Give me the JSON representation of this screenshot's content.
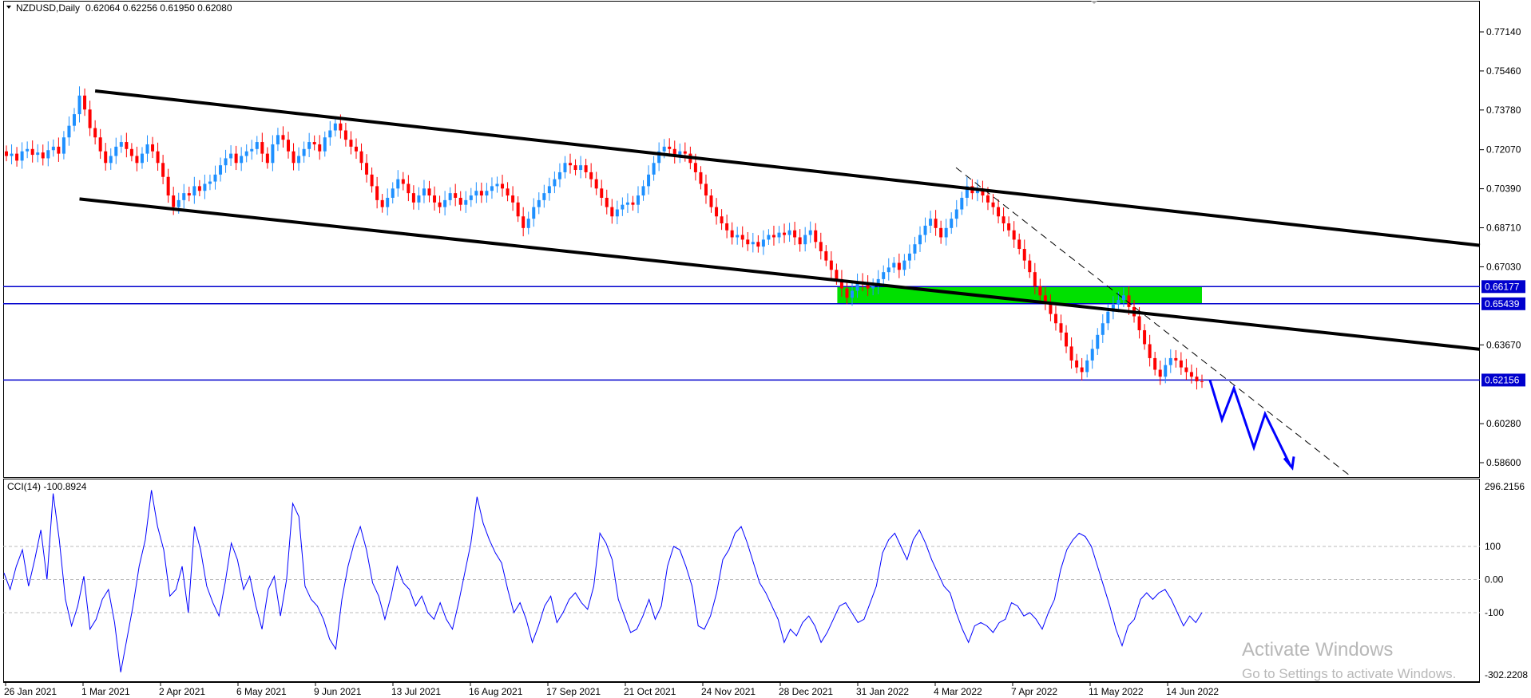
{
  "header": {
    "symbol": "NZDUSD,Daily",
    "ohlc": "0.62064 0.62256 0.61950 0.62080"
  },
  "indicator": {
    "label": "CCI(14) -100.8924"
  },
  "watermark": {
    "line1": "Activate Windows",
    "line2": "Go to Settings to activate Windows."
  },
  "colors": {
    "bull": "#1e90ff",
    "bear": "#ff0000",
    "hline": "#0000cd",
    "zone": "#00e000",
    "cci": "#0000ff",
    "projection": "#0000ff"
  },
  "chart_data": [
    {
      "type": "candlestick",
      "title": "NZDUSD,Daily",
      "x_tick_labels": [
        "26 Jan 2021",
        "1 Mar 2021",
        "2 Apr 2021",
        "6 May 2021",
        "9 Jun 2021",
        "13 Jul 2021",
        "16 Aug 2021",
        "17 Sep 2021",
        "21 Oct 2021",
        "24 Nov 2021",
        "28 Dec 2021",
        "31 Jan 2022",
        "4 Mar 2022",
        "7 Apr 2022",
        "11 May 2022",
        "14 Jun 2022"
      ],
      "y_tick_labels": [
        "0.77140",
        "0.75460",
        "0.73780",
        "0.72070",
        "0.70390",
        "0.68710",
        "0.67030",
        "0.63670",
        "0.60280",
        "0.58600"
      ],
      "ylim": [
        0.58,
        0.784
      ],
      "horizontal_levels": [
        {
          "label": "0.66177",
          "value": 0.66177
        },
        {
          "label": "0.65439",
          "value": 0.65439
        },
        {
          "label": "0.62156",
          "value": 0.62156
        }
      ],
      "zone": {
        "from": "3 Jan 2022",
        "to": "28 Jun 2022",
        "low": 0.6544,
        "high": 0.6618
      },
      "channel": {
        "upper": [
          {
            "date": "23 Feb 2021",
            "value": 0.746
          },
          {
            "date": "end",
            "value": 0.6795
          }
        ],
        "lower": [
          {
            "date": "17 Feb 2021",
            "value": 0.6995
          },
          {
            "date": "end",
            "value": 0.6348
          }
        ]
      },
      "downtrend_dashed": [
        {
          "date": "7 Mar 2022",
          "value": 0.713
        },
        {
          "date": "projection-end",
          "value": 0.5805
        }
      ],
      "projection_path": [
        0.6215,
        0.6045,
        0.618,
        0.5925,
        0.607,
        0.5845
      ],
      "closes": [
        0.718,
        0.719,
        0.716,
        0.72,
        0.721,
        0.7185,
        0.7195,
        0.717,
        0.7205,
        0.722,
        0.719,
        0.726,
        0.731,
        0.736,
        0.744,
        0.738,
        0.73,
        0.726,
        0.72,
        0.715,
        0.718,
        0.722,
        0.724,
        0.721,
        0.718,
        0.715,
        0.719,
        0.723,
        0.72,
        0.715,
        0.709,
        0.701,
        0.696,
        0.699,
        0.702,
        0.701,
        0.705,
        0.703,
        0.706,
        0.707,
        0.71,
        0.714,
        0.717,
        0.719,
        0.715,
        0.718,
        0.72,
        0.721,
        0.724,
        0.719,
        0.715,
        0.723,
        0.727,
        0.725,
        0.72,
        0.715,
        0.718,
        0.721,
        0.724,
        0.723,
        0.72,
        0.726,
        0.729,
        0.732,
        0.729,
        0.725,
        0.722,
        0.72,
        0.715,
        0.71,
        0.705,
        0.699,
        0.696,
        0.7,
        0.704,
        0.708,
        0.706,
        0.702,
        0.698,
        0.701,
        0.704,
        0.701,
        0.698,
        0.696,
        0.699,
        0.702,
        0.7,
        0.697,
        0.699,
        0.701,
        0.703,
        0.701,
        0.703,
        0.705,
        0.706,
        0.704,
        0.701,
        0.698,
        0.692,
        0.687,
        0.691,
        0.696,
        0.699,
        0.702,
        0.705,
        0.708,
        0.711,
        0.715,
        0.714,
        0.712,
        0.714,
        0.711,
        0.708,
        0.704,
        0.7,
        0.696,
        0.692,
        0.695,
        0.697,
        0.698,
        0.697,
        0.701,
        0.705,
        0.71,
        0.715,
        0.72,
        0.722,
        0.721,
        0.718,
        0.72,
        0.719,
        0.715,
        0.711,
        0.706,
        0.701,
        0.696,
        0.692,
        0.689,
        0.686,
        0.683,
        0.684,
        0.682,
        0.68,
        0.681,
        0.679,
        0.682,
        0.684,
        0.683,
        0.685,
        0.684,
        0.686,
        0.683,
        0.68,
        0.684,
        0.686,
        0.681,
        0.677,
        0.673,
        0.669,
        0.665,
        0.661,
        0.657,
        0.66,
        0.664,
        0.663,
        0.661,
        0.662,
        0.665,
        0.668,
        0.67,
        0.672,
        0.669,
        0.673,
        0.676,
        0.68,
        0.684,
        0.688,
        0.691,
        0.687,
        0.683,
        0.687,
        0.691,
        0.695,
        0.7,
        0.705,
        0.702,
        0.704,
        0.701,
        0.698,
        0.696,
        0.692,
        0.689,
        0.686,
        0.682,
        0.678,
        0.673,
        0.668,
        0.662,
        0.658,
        0.655,
        0.65,
        0.646,
        0.642,
        0.636,
        0.63,
        0.627,
        0.625,
        0.63,
        0.635,
        0.641,
        0.646,
        0.651,
        0.654,
        0.656,
        0.658,
        0.653,
        0.649,
        0.643,
        0.637,
        0.631,
        0.626,
        0.623,
        0.628,
        0.631,
        0.63,
        0.627,
        0.625,
        0.623,
        0.621,
        0.6208
      ]
    },
    {
      "type": "line",
      "title": "CCI(14) -100.8924",
      "y_tick_labels": [
        "296.2156",
        "100",
        "0.00",
        "-100",
        "-302.2208"
      ],
      "ylim": [
        -302.2208,
        296.2156
      ],
      "series": [
        {
          "name": "CCI(14)",
          "values": [
            20,
            -30,
            40,
            90,
            -20,
            60,
            150,
            0,
            260,
            120,
            -60,
            -140,
            -80,
            10,
            -150,
            -120,
            -60,
            -30,
            -130,
            -280,
            -180,
            -80,
            40,
            120,
            270,
            160,
            90,
            -50,
            -30,
            40,
            -100,
            160,
            90,
            -20,
            -70,
            -110,
            -10,
            110,
            60,
            -30,
            10,
            -80,
            -150,
            -30,
            10,
            -110,
            0,
            230,
            190,
            -20,
            -60,
            -80,
            -120,
            -180,
            -210,
            -60,
            40,
            110,
            160,
            90,
            -10,
            -50,
            -120,
            -50,
            40,
            -10,
            -30,
            -80,
            -50,
            -100,
            -120,
            -70,
            -120,
            -150,
            -70,
            20,
            110,
            250,
            170,
            120,
            80,
            50,
            -30,
            -100,
            -70,
            -120,
            -190,
            -140,
            -80,
            -50,
            -130,
            -100,
            -60,
            -40,
            -70,
            -90,
            -20,
            140,
            110,
            60,
            -60,
            -110,
            -160,
            -150,
            -110,
            -60,
            -120,
            -80,
            40,
            100,
            90,
            40,
            -20,
            -140,
            -150,
            -110,
            -40,
            60,
            90,
            140,
            160,
            110,
            50,
            -10,
            -40,
            -80,
            -120,
            -190,
            -150,
            -170,
            -130,
            -110,
            -140,
            -190,
            -160,
            -120,
            -80,
            -70,
            -100,
            -130,
            -120,
            -70,
            -20,
            80,
            120,
            140,
            100,
            60,
            120,
            150,
            110,
            60,
            20,
            -20,
            -40,
            -100,
            -150,
            -190,
            -140,
            -130,
            -140,
            -160,
            -130,
            -120,
            -70,
            -80,
            -110,
            -100,
            -120,
            -150,
            -100,
            -60,
            30,
            90,
            120,
            140,
            130,
            100,
            40,
            -20,
            -80,
            -150,
            -200,
            -140,
            -120,
            -60,
            -40,
            -60,
            -40,
            -30,
            -60,
            -100,
            -140,
            -110,
            -130,
            -100
          ],
          "visible_x_range": [
            "26 Jan 2021",
            "28 Jun 2022"
          ]
        }
      ]
    }
  ]
}
